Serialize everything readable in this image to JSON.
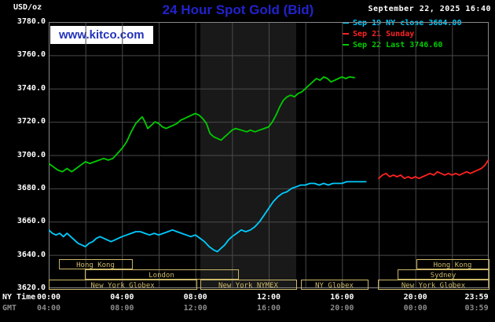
{
  "header": {
    "unit_label": "USD/oz",
    "title": "24 Hour Spot Gold (Bid)",
    "datetime": "September 22, 2025 16:40",
    "watermark": "www.kitco.com",
    "legend": [
      {
        "label": "Sep 19 NY close 3684.00",
        "color": "#00ccff"
      },
      {
        "label": "Sep 21 Sunday",
        "color": "#ff2222"
      },
      {
        "label": "Sep 22 Last 3746.60",
        "color": "#00cc00"
      }
    ]
  },
  "colors": {
    "background": "#000000",
    "title": "#2222cc",
    "watermark": "#2233bb",
    "grid": "#4a4a4a",
    "border": "#888888",
    "band": "#191919",
    "session": "#cdb96a",
    "axis_text": "#ffffff",
    "gmt_text": "#8a8a8a"
  },
  "axes": {
    "ny_label": "NY Time",
    "gmt_label": "GMT",
    "y_ticks": [
      {
        "value": 3780,
        "label": "3780.0"
      },
      {
        "value": 3760,
        "label": "3760.0"
      },
      {
        "value": 3740,
        "label": "3740.0"
      },
      {
        "value": 3720,
        "label": "3720.0"
      },
      {
        "value": 3700,
        "label": "3700.0"
      },
      {
        "value": 3680,
        "label": "3680.0"
      },
      {
        "value": 3660,
        "label": "3660.0"
      },
      {
        "value": 3640,
        "label": "3640.0"
      },
      {
        "value": 3620,
        "label": "3620.0"
      }
    ],
    "x_ticks": [
      {
        "hour": 0,
        "ny": "00:00",
        "gmt": "04:00"
      },
      {
        "hour": 4,
        "ny": "04:00",
        "gmt": "08:00"
      },
      {
        "hour": 8,
        "ny": "08:00",
        "gmt": "12:00"
      },
      {
        "hour": 12,
        "ny": "12:00",
        "gmt": "16:00"
      },
      {
        "hour": 16,
        "ny": "16:00",
        "gmt": "20:00"
      },
      {
        "hour": 20,
        "ny": "20:00",
        "gmt": "00:00"
      },
      {
        "hour": 23.983,
        "ny": "23:59",
        "gmt": "03:59",
        "align": "right"
      }
    ]
  },
  "sessions": [
    {
      "row": 0,
      "label": "Hong Kong",
      "start": 0.56,
      "end": 4.54
    },
    {
      "row": 0,
      "label": "Hong Kong",
      "start": 20.06,
      "end": 24.0
    },
    {
      "row": 1,
      "label": "London",
      "start": 1.97,
      "end": 10.33
    },
    {
      "row": 1,
      "label": "Sydney",
      "start": 19.03,
      "end": 24.0
    },
    {
      "row": 2,
      "label": "New York Globex",
      "start": 0.0,
      "end": 8.06
    },
    {
      "row": 2,
      "label": "New York NYMEX",
      "start": 8.27,
      "end": 13.5
    },
    {
      "row": 2,
      "label": "NY Globex",
      "start": 13.76,
      "end": 17.4
    },
    {
      "row": 2,
      "label": "New York Globex",
      "start": 17.96,
      "end": 24.0
    }
  ],
  "chart_data": {
    "type": "line",
    "title": "24 Hour Spot Gold (Bid)",
    "xlabel": "NY Time (hours)",
    "ylabel": "USD/oz",
    "x_axis": {
      "min_hour": 0,
      "max_hour": 24
    },
    "y_axis": {
      "min": 3620,
      "max": 3780,
      "tick_step": 20
    },
    "shaded_band_hours": [
      8.27,
      13.5
    ],
    "legend_position": "top-right",
    "series": [
      {
        "id": "sep19",
        "name": "Sep 19 NY close 3684.00",
        "color": "#00ccff",
        "points": [
          [
            0.0,
            3655
          ],
          [
            0.2,
            3653
          ],
          [
            0.4,
            3652
          ],
          [
            0.6,
            3653
          ],
          [
            0.8,
            3651
          ],
          [
            1.0,
            3653
          ],
          [
            1.2,
            3651
          ],
          [
            1.4,
            3649
          ],
          [
            1.6,
            3647
          ],
          [
            1.8,
            3646
          ],
          [
            2.0,
            3645
          ],
          [
            2.2,
            3647
          ],
          [
            2.4,
            3648
          ],
          [
            2.6,
            3650
          ],
          [
            2.8,
            3651
          ],
          [
            3.0,
            3650
          ],
          [
            3.2,
            3649
          ],
          [
            3.4,
            3648
          ],
          [
            3.6,
            3649
          ],
          [
            3.8,
            3650
          ],
          [
            4.0,
            3651
          ],
          [
            4.25,
            3652
          ],
          [
            4.5,
            3653
          ],
          [
            4.75,
            3654
          ],
          [
            5.0,
            3654
          ],
          [
            5.25,
            3653
          ],
          [
            5.5,
            3652
          ],
          [
            5.75,
            3653
          ],
          [
            6.0,
            3652
          ],
          [
            6.25,
            3653
          ],
          [
            6.5,
            3654
          ],
          [
            6.75,
            3655
          ],
          [
            7.0,
            3654
          ],
          [
            7.25,
            3653
          ],
          [
            7.5,
            3652
          ],
          [
            7.75,
            3651
          ],
          [
            8.0,
            3652
          ],
          [
            8.25,
            3650
          ],
          [
            8.5,
            3648
          ],
          [
            8.75,
            3645
          ],
          [
            9.0,
            3643
          ],
          [
            9.2,
            3642
          ],
          [
            9.4,
            3644
          ],
          [
            9.6,
            3646
          ],
          [
            9.8,
            3649
          ],
          [
            10.0,
            3651
          ],
          [
            10.25,
            3653
          ],
          [
            10.5,
            3655
          ],
          [
            10.75,
            3654
          ],
          [
            11.0,
            3655
          ],
          [
            11.25,
            3657
          ],
          [
            11.5,
            3660
          ],
          [
            11.75,
            3664
          ],
          [
            12.0,
            3668
          ],
          [
            12.25,
            3672
          ],
          [
            12.5,
            3675
          ],
          [
            12.75,
            3677
          ],
          [
            13.0,
            3678
          ],
          [
            13.25,
            3680
          ],
          [
            13.5,
            3681
          ],
          [
            13.75,
            3682
          ],
          [
            14.0,
            3682
          ],
          [
            14.25,
            3683
          ],
          [
            14.5,
            3683
          ],
          [
            14.75,
            3682
          ],
          [
            15.0,
            3683
          ],
          [
            15.25,
            3682
          ],
          [
            15.5,
            3683
          ],
          [
            15.75,
            3683
          ],
          [
            16.0,
            3683
          ],
          [
            16.25,
            3684
          ],
          [
            16.5,
            3684
          ],
          [
            16.75,
            3684
          ],
          [
            17.0,
            3684
          ],
          [
            17.3,
            3684
          ]
        ]
      },
      {
        "id": "sep21",
        "name": "Sep 21 Sunday",
        "color": "#ff2222",
        "points": [
          [
            18.0,
            3686
          ],
          [
            18.2,
            3688
          ],
          [
            18.4,
            3689
          ],
          [
            18.6,
            3687
          ],
          [
            18.8,
            3688
          ],
          [
            19.0,
            3687
          ],
          [
            19.2,
            3688
          ],
          [
            19.4,
            3686
          ],
          [
            19.6,
            3687
          ],
          [
            19.8,
            3686
          ],
          [
            20.0,
            3687
          ],
          [
            20.2,
            3686
          ],
          [
            20.4,
            3687
          ],
          [
            20.6,
            3688
          ],
          [
            20.8,
            3689
          ],
          [
            21.0,
            3688
          ],
          [
            21.2,
            3690
          ],
          [
            21.4,
            3689
          ],
          [
            21.6,
            3688
          ],
          [
            21.8,
            3689
          ],
          [
            22.0,
            3688
          ],
          [
            22.2,
            3689
          ],
          [
            22.4,
            3688
          ],
          [
            22.6,
            3689
          ],
          [
            22.8,
            3690
          ],
          [
            23.0,
            3689
          ],
          [
            23.2,
            3690
          ],
          [
            23.4,
            3691
          ],
          [
            23.6,
            3692
          ],
          [
            23.8,
            3694
          ],
          [
            23.98,
            3697
          ]
        ]
      },
      {
        "id": "sep22",
        "name": "Sep 22 Last 3746.60",
        "color": "#00cc00",
        "points": [
          [
            0.0,
            3695
          ],
          [
            0.25,
            3693
          ],
          [
            0.5,
            3691
          ],
          [
            0.75,
            3690
          ],
          [
            1.0,
            3692
          ],
          [
            1.25,
            3690
          ],
          [
            1.5,
            3692
          ],
          [
            1.75,
            3694
          ],
          [
            2.0,
            3696
          ],
          [
            2.25,
            3695
          ],
          [
            2.5,
            3696
          ],
          [
            2.75,
            3697
          ],
          [
            3.0,
            3698
          ],
          [
            3.25,
            3697
          ],
          [
            3.5,
            3698
          ],
          [
            3.75,
            3701
          ],
          [
            4.0,
            3704
          ],
          [
            4.25,
            3708
          ],
          [
            4.5,
            3714
          ],
          [
            4.75,
            3719
          ],
          [
            5.0,
            3722
          ],
          [
            5.1,
            3723
          ],
          [
            5.25,
            3720
          ],
          [
            5.4,
            3716
          ],
          [
            5.6,
            3718
          ],
          [
            5.8,
            3720
          ],
          [
            6.0,
            3719
          ],
          [
            6.2,
            3717
          ],
          [
            6.4,
            3716
          ],
          [
            6.6,
            3717
          ],
          [
            6.8,
            3718
          ],
          [
            7.0,
            3719
          ],
          [
            7.2,
            3721
          ],
          [
            7.4,
            3722
          ],
          [
            7.6,
            3723
          ],
          [
            7.8,
            3724
          ],
          [
            8.0,
            3725
          ],
          [
            8.2,
            3724
          ],
          [
            8.4,
            3722
          ],
          [
            8.6,
            3719
          ],
          [
            8.8,
            3713
          ],
          [
            9.0,
            3711
          ],
          [
            9.2,
            3710
          ],
          [
            9.4,
            3709
          ],
          [
            9.6,
            3711
          ],
          [
            9.8,
            3713
          ],
          [
            10.0,
            3715
          ],
          [
            10.2,
            3716
          ],
          [
            10.5,
            3715
          ],
          [
            10.8,
            3714
          ],
          [
            11.0,
            3715
          ],
          [
            11.25,
            3714
          ],
          [
            11.5,
            3715
          ],
          [
            11.75,
            3716
          ],
          [
            12.0,
            3717
          ],
          [
            12.2,
            3720
          ],
          [
            12.4,
            3724
          ],
          [
            12.6,
            3729
          ],
          [
            12.8,
            3733
          ],
          [
            13.0,
            3735
          ],
          [
            13.2,
            3736
          ],
          [
            13.4,
            3735
          ],
          [
            13.6,
            3737
          ],
          [
            13.8,
            3738
          ],
          [
            14.0,
            3740
          ],
          [
            14.2,
            3742
          ],
          [
            14.4,
            3744
          ],
          [
            14.6,
            3746
          ],
          [
            14.8,
            3745
          ],
          [
            15.0,
            3747
          ],
          [
            15.2,
            3746
          ],
          [
            15.4,
            3744
          ],
          [
            15.6,
            3745
          ],
          [
            15.8,
            3746
          ],
          [
            16.0,
            3747
          ],
          [
            16.2,
            3746
          ],
          [
            16.4,
            3747
          ],
          [
            16.67,
            3746.6
          ]
        ]
      }
    ]
  }
}
